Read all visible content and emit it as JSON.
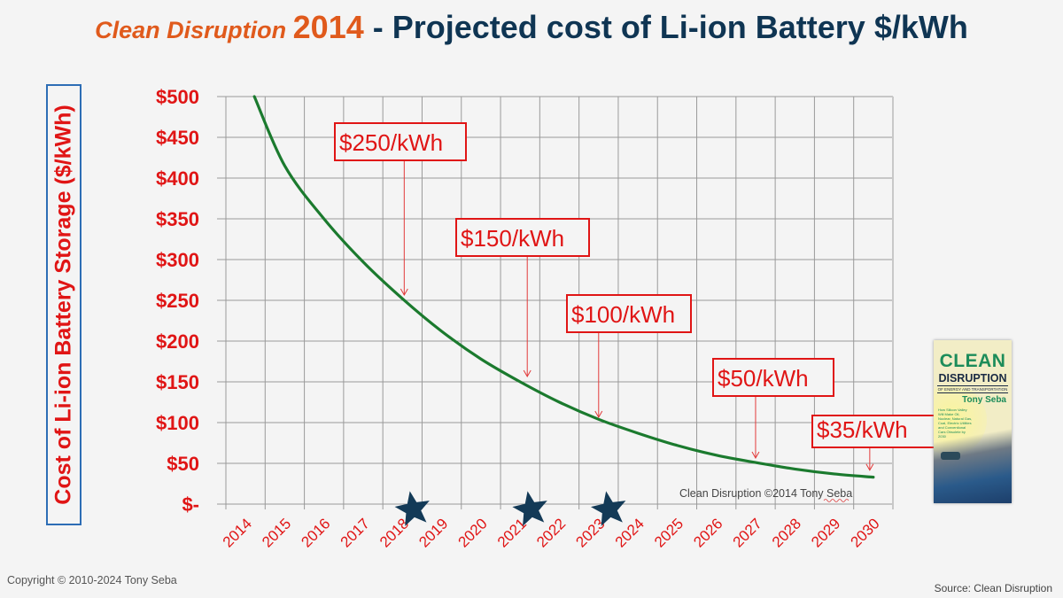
{
  "title": {
    "part1": "Clean Disruption ",
    "part2": "2014",
    "part3": " - Projected cost of Li-ion Battery $/kWh"
  },
  "colors": {
    "title_orange": "#e05a1c",
    "title_navy": "#0f3553",
    "axis_red": "#e01515",
    "curve_green": "#1b7a2e",
    "star_navy": "#133a57",
    "ylabel_border": "#2d6db5"
  },
  "footer": {
    "copyright": "Copyright © 2010-2024 Tony Seba",
    "source": "Source: Clean Disruption"
  },
  "book_cover": {
    "title_line1": "CLEAN",
    "title_line2": "DISRUPTION",
    "subtitle": "OF ENERGY AND TRANSPORTATION",
    "author": "Tony Seba",
    "blurb": "How Silicon Valley Will Make Oil, Nuclear, Natural Gas, Coal, Electric Utilities and Conventional Cars Obsolete by 2030"
  },
  "chart_data": {
    "type": "line",
    "title": "Clean Disruption 2014 - Projected cost of Li-ion Battery $/kWh",
    "xlabel": "",
    "ylabel": "Cost of Li-ion Battery Storage ($/kWh)",
    "ylim": [
      0,
      500
    ],
    "grid": true,
    "legend": "none",
    "y_ticks": [
      0,
      50,
      100,
      150,
      200,
      250,
      300,
      350,
      400,
      450,
      500
    ],
    "y_tick_labels": [
      "$-",
      "$50",
      "$100",
      "$150",
      "$200",
      "$250",
      "$300",
      "$350",
      "$400",
      "$450",
      "$500"
    ],
    "categories": [
      "2014",
      "2015",
      "2016",
      "2017",
      "2018",
      "2019",
      "2020",
      "2021",
      "2022",
      "2023",
      "2024",
      "2025",
      "2026",
      "2027",
      "2028",
      "2029",
      "2030"
    ],
    "series": [
      {
        "name": "Projected cost ($/kWh)",
        "color": "#1b7a2e",
        "x": [
          2014,
          2015,
          2016,
          2017,
          2018,
          2019,
          2020,
          2021,
          2022,
          2023,
          2024,
          2025,
          2026,
          2027,
          2028,
          2029,
          2030
        ],
        "values": [
          500,
          415,
          350,
          297,
          252,
          212,
          178,
          150,
          125,
          104,
          87,
          72,
          60,
          51,
          43,
          37,
          33
        ]
      }
    ],
    "annotations": [
      {
        "text": "$250/kWh",
        "x": 2018,
        "y": 250
      },
      {
        "text": "$150/kWh",
        "x": 2021,
        "y": 150
      },
      {
        "text": "$100/kWh",
        "x": 2023,
        "y": 100
      },
      {
        "text": "$50/kWh",
        "x": 2027,
        "y": 50
      },
      {
        "text": "$35/kWh",
        "x": 2030,
        "y": 35
      }
    ],
    "markers": [
      {
        "type": "star",
        "x": 2018,
        "label": "star-2018"
      },
      {
        "type": "star",
        "x": 2021,
        "label": "star-2021"
      },
      {
        "type": "star",
        "x": 2023,
        "label": "star-2023"
      }
    ],
    "watermark": "Clean Disruption ©2014 Tony Seba"
  }
}
